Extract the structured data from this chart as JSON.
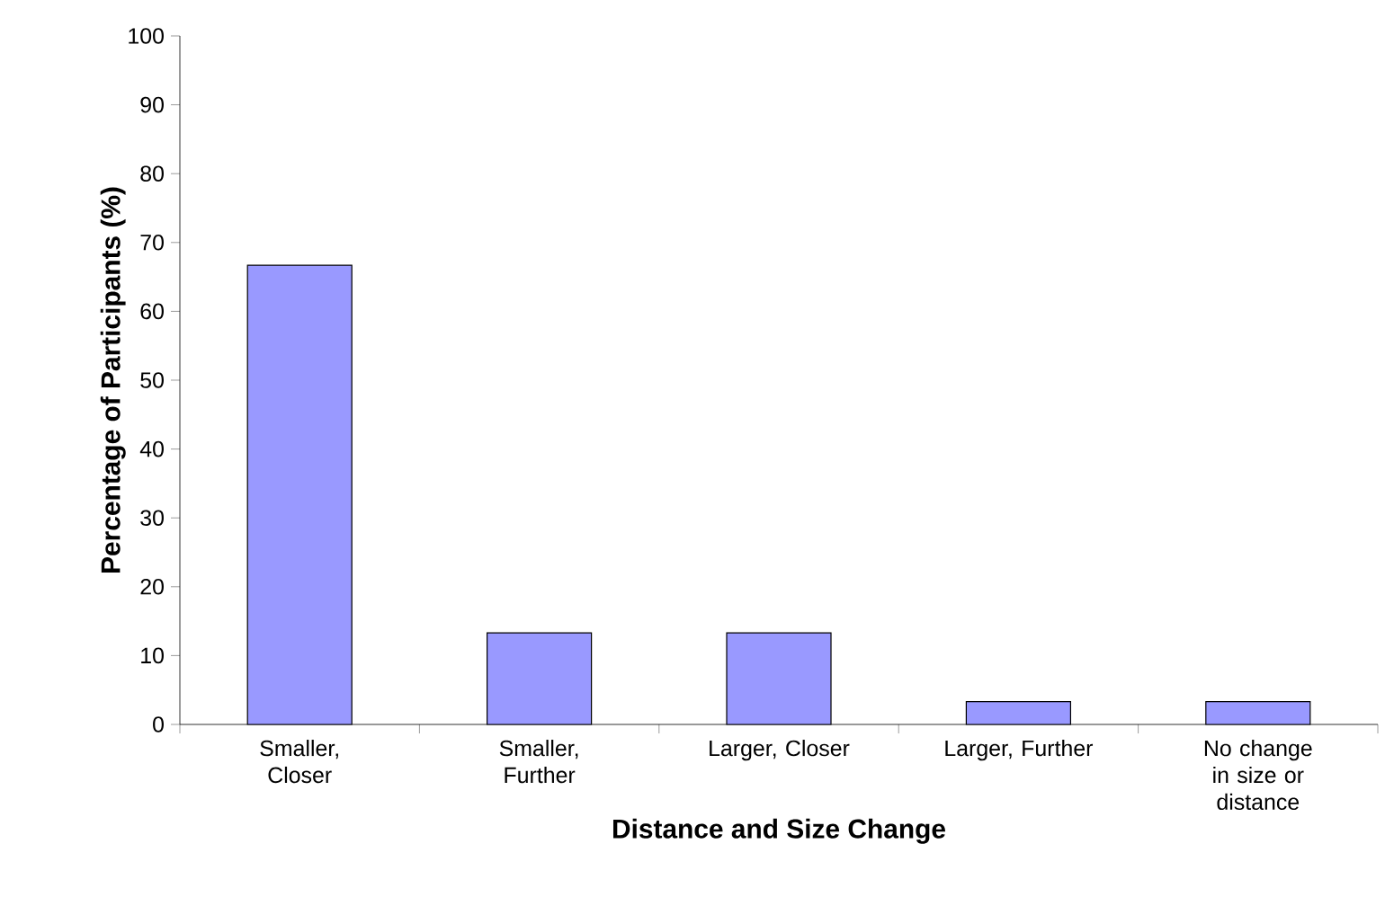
{
  "chart_data": {
    "type": "bar",
    "xlabel": "Distance and Size Change",
    "ylabel": "Percentage of Participants (%)",
    "categories": [
      "Smaller, Closer",
      "Smaller, Further",
      "Larger, Closer",
      "Larger, Further",
      "No change in size or distance"
    ],
    "values": [
      66.7,
      13.3,
      13.3,
      3.3,
      3.3
    ],
    "color": "#9999ff",
    "ylim": [
      0,
      100
    ],
    "yticks": [
      0,
      10,
      20,
      30,
      40,
      50,
      60,
      70,
      80,
      90,
      100
    ]
  }
}
